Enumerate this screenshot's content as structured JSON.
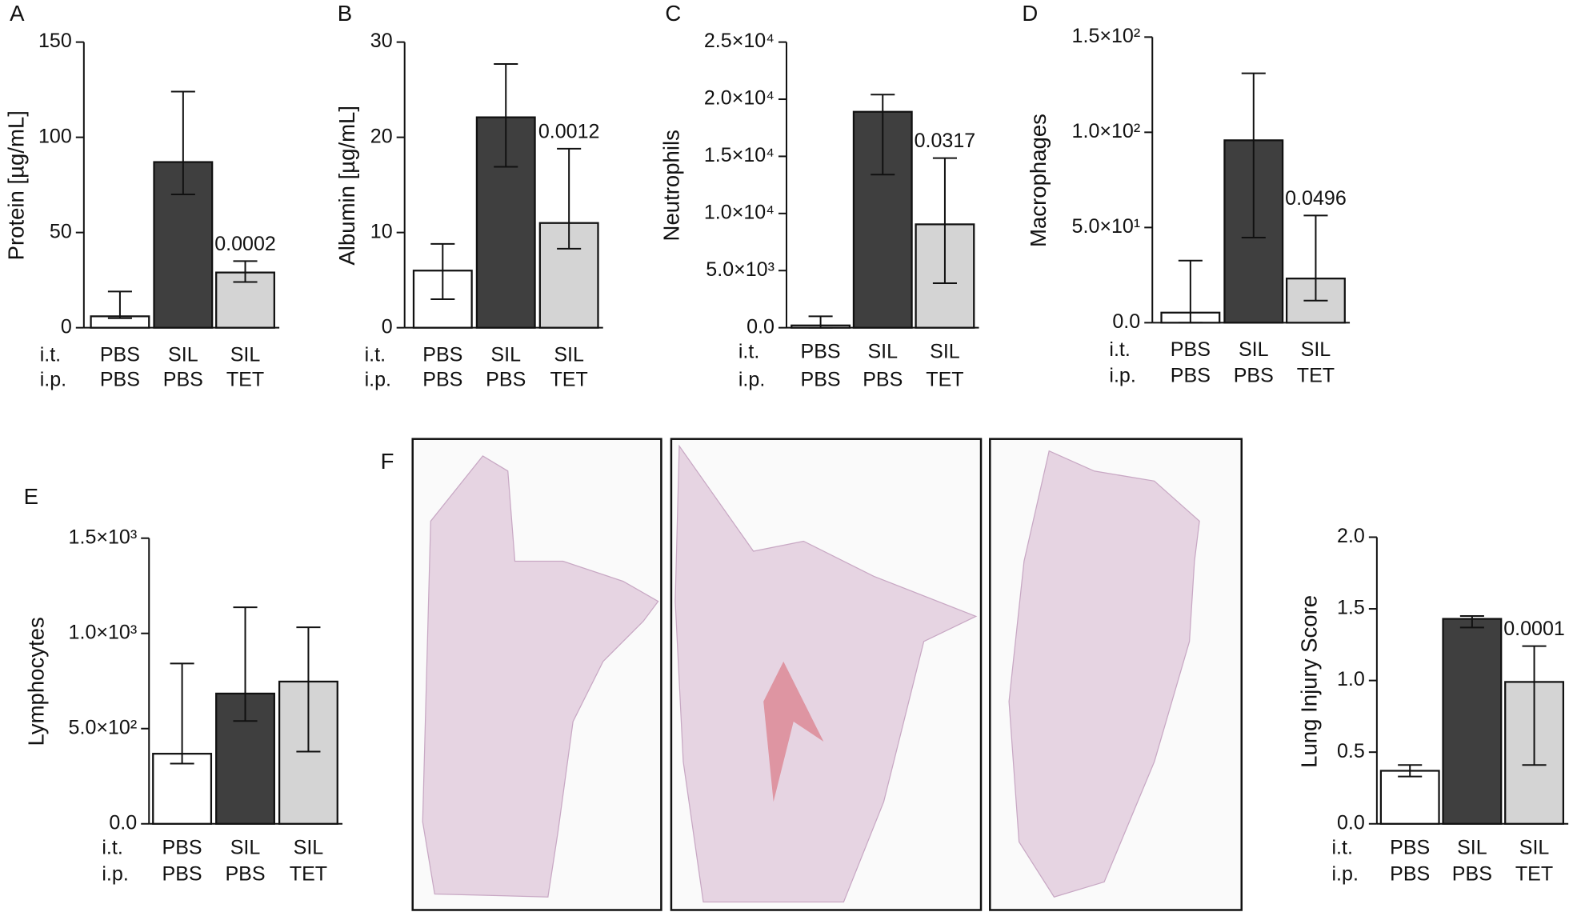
{
  "chart_data": [
    {
      "type": "bar",
      "panel": "A",
      "ylabel": "Protein [µg/mL]",
      "row_labels": [
        "i.t.",
        "i.p."
      ],
      "categories": [
        [
          "PBS",
          "PBS"
        ],
        [
          "SIL",
          "PBS"
        ],
        [
          "SIL",
          "TET"
        ]
      ],
      "values": [
        6,
        87,
        29
      ],
      "err_low": [
        5,
        70,
        24
      ],
      "err_high": [
        19,
        124,
        35
      ],
      "pvalues": [
        null,
        null,
        "0.0002"
      ],
      "colors": [
        "#ffffff",
        "#3f3f3f",
        "#d4d4d4"
      ],
      "ylim": [
        0,
        150
      ],
      "yticks": [
        0,
        50,
        100,
        150
      ]
    },
    {
      "type": "bar",
      "panel": "B",
      "ylabel": "Albumin [µg/mL]",
      "row_labels": [
        "i.t.",
        "i.p."
      ],
      "categories": [
        [
          "PBS",
          "PBS"
        ],
        [
          "SIL",
          "PBS"
        ],
        [
          "SIL",
          "TET"
        ]
      ],
      "values": [
        6,
        22.1,
        11
      ],
      "err_low": [
        3,
        16.9,
        8.3
      ],
      "err_high": [
        8.8,
        27.7,
        18.8
      ],
      "pvalues": [
        null,
        null,
        "0.0012"
      ],
      "colors": [
        "#ffffff",
        "#3f3f3f",
        "#d4d4d4"
      ],
      "ylim": [
        0,
        30
      ],
      "yticks": [
        0,
        10,
        20,
        30
      ]
    },
    {
      "type": "bar",
      "panel": "C",
      "ylabel": "Neutrophils",
      "row_labels": [
        "i.t.",
        "i.p."
      ],
      "categories": [
        [
          "PBS",
          "PBS"
        ],
        [
          "SIL",
          "PBS"
        ],
        [
          "SIL",
          "TET"
        ]
      ],
      "values": [
        200,
        18900,
        9050
      ],
      "err_low": [
        0,
        13400,
        3900
      ],
      "err_high": [
        1000,
        20400,
        14850
      ],
      "pvalues": [
        null,
        null,
        "0.0317"
      ],
      "colors": [
        "#ffffff",
        "#3f3f3f",
        "#d4d4d4"
      ],
      "ylim": [
        0,
        25000
      ],
      "yticks": [
        {
          "value": 0,
          "label": "0.0"
        },
        {
          "value": 5000,
          "label": "5.0×10³"
        },
        {
          "value": 10000,
          "label": "1.0×10⁴"
        },
        {
          "value": 15000,
          "label": "1.5×10⁴"
        },
        {
          "value": 20000,
          "label": "2.0×10⁴"
        },
        {
          "value": 25000,
          "label": "2.5×10⁴"
        }
      ]
    },
    {
      "type": "bar",
      "panel": "D",
      "ylabel": "Macrophages",
      "row_labels": [
        "i.t.",
        "i.p."
      ],
      "categories": [
        [
          "PBS",
          "PBS"
        ],
        [
          "SIL",
          "PBS"
        ],
        [
          "SIL",
          "TET"
        ]
      ],
      "values": [
        5.3,
        95.8,
        23.2
      ],
      "err_low": [
        0,
        44.7,
        11.6
      ],
      "err_high": [
        32.6,
        131,
        56.3
      ],
      "pvalues": [
        null,
        null,
        "0.0496"
      ],
      "colors": [
        "#ffffff",
        "#3f3f3f",
        "#d4d4d4"
      ],
      "ylim": [
        0,
        150
      ],
      "yticks": [
        {
          "value": 0,
          "label": "0.0"
        },
        {
          "value": 50,
          "label": "5.0×10¹"
        },
        {
          "value": 100,
          "label": "1.0×10²"
        },
        {
          "value": 150,
          "label": "1.5×10²"
        }
      ]
    },
    {
      "type": "bar",
      "panel": "E",
      "ylabel": "Lymphocytes",
      "row_labels": [
        "i.t.",
        "i.p."
      ],
      "categories": [
        [
          "PBS",
          "PBS"
        ],
        [
          "SIL",
          "PBS"
        ],
        [
          "SIL",
          "TET"
        ]
      ],
      "values": [
        368,
        684,
        747
      ],
      "err_low": [
        316,
        540,
        379
      ],
      "err_high": [
        842,
        1137,
        1032
      ],
      "colors": [
        "#ffffff",
        "#3f3f3f",
        "#d4d4d4"
      ],
      "ylim": [
        0,
        1500
      ],
      "yticks": [
        {
          "value": 0,
          "label": "0.0"
        },
        {
          "value": 500,
          "label": "5.0×10²"
        },
        {
          "value": 1000,
          "label": "1.0×10³"
        },
        {
          "value": 1500,
          "label": "1.5×10³"
        }
      ]
    },
    {
      "type": "bar",
      "ylabel": "Lung Injury Score",
      "row_labels": [
        "i.t.",
        "i.p."
      ],
      "categories": [
        [
          "PBS",
          "PBS"
        ],
        [
          "SIL",
          "PBS"
        ],
        [
          "SIL",
          "TET"
        ]
      ],
      "values": [
        0.37,
        1.43,
        0.99
      ],
      "err_low": [
        0.33,
        1.37,
        0.41
      ],
      "err_high": [
        0.41,
        1.45,
        1.24
      ],
      "pvalues": [
        null,
        null,
        "0.0001"
      ],
      "colors": [
        "#ffffff",
        "#3f3f3f",
        "#d4d4d4"
      ],
      "ylim": [
        0,
        2
      ],
      "yticks": [
        {
          "value": 0,
          "label": "0.0"
        },
        0.5,
        {
          "value": 1,
          "label": "1.0"
        },
        1.5,
        {
          "value": 2,
          "label": "2.0"
        }
      ]
    }
  ],
  "histology": {
    "panel": "F"
  }
}
